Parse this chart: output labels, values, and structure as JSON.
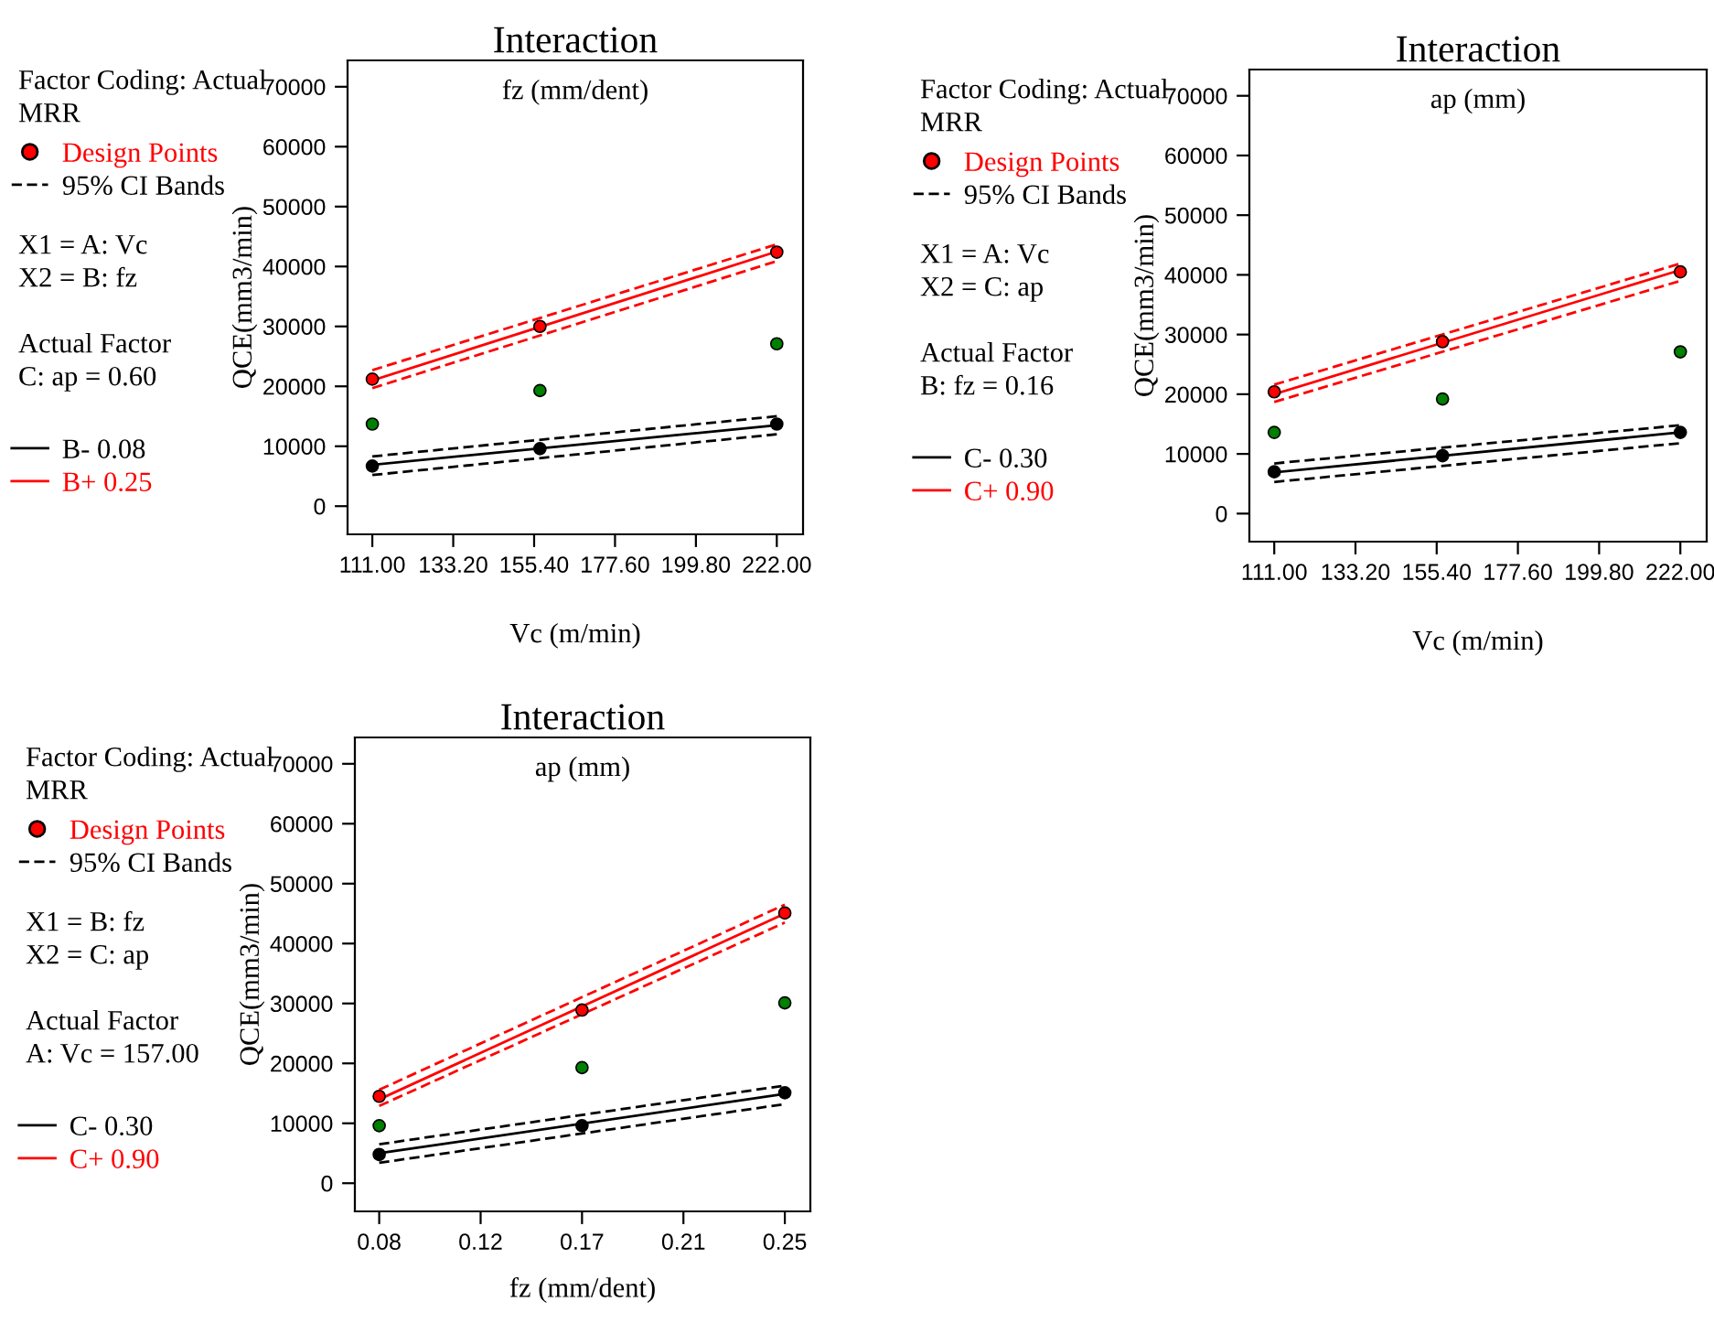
{
  "chart_data": [
    {
      "type": "line",
      "title": "Interaction",
      "subtitle": "fz (mm/dent)",
      "xlabel": "Vc (m/min)",
      "ylabel": "QCE(mm3/min)",
      "xlim": [
        104.2,
        229.2
      ],
      "ylim": [
        -4700,
        74400
      ],
      "xticks": [
        {
          "value": 111,
          "label": "111.00"
        },
        {
          "value": 133.2,
          "label": "133.20"
        },
        {
          "value": 155.4,
          "label": "155.40"
        },
        {
          "value": 177.6,
          "label": "177.60"
        },
        {
          "value": 199.8,
          "label": "199.80"
        },
        {
          "value": 222,
          "label": "222.00"
        }
      ],
      "yticks": [
        0,
        10000,
        20000,
        30000,
        40000,
        50000,
        60000,
        70000
      ],
      "grid": false,
      "legend": "left",
      "annotations": [
        "Factor Coding: Actual",
        "MRR",
        "X1 = A: Vc",
        "X2 = B: fz",
        "Actual Factor",
        "C: ap = 0.60"
      ],
      "series": [
        {
          "name": "B- 0.08",
          "color": "#000000",
          "line_style": "solid",
          "marker": "none",
          "x": [
            111,
            222
          ],
          "values": [
            6900,
            13500
          ]
        },
        {
          "name": "95% CI Bands",
          "color": "#000000",
          "line_style": "dashed",
          "marker": "none",
          "x": [
            111,
            222
          ],
          "values": [
            8300,
            15000
          ]
        },
        {
          "color": "#000000",
          "line_style": "dashed",
          "marker": "none",
          "x": [
            111,
            222
          ],
          "values": [
            5200,
            12000
          ]
        },
        {
          "name": "B+ 0.25",
          "color": "#ff0000",
          "line_style": "solid",
          "marker": "none",
          "x": [
            111,
            222
          ],
          "values": [
            21000,
            42500
          ]
        },
        {
          "color": "#ff0000",
          "line_style": "dashed",
          "marker": "none",
          "x": [
            111,
            222
          ],
          "values": [
            22700,
            43700
          ]
        },
        {
          "color": "#ff0000",
          "line_style": "dashed",
          "marker": "none",
          "x": [
            111,
            222
          ],
          "values": [
            19700,
            40900
          ]
        },
        {
          "type": "scatter",
          "name": "Design Points",
          "marker": "circle",
          "color": "#ff0000",
          "x": [
            111,
            157,
            222,
            111,
            157,
            222,
            111,
            157,
            222
          ],
          "values": [
            21200,
            30000,
            42400,
            6700,
            9600,
            13700,
            13700,
            19300,
            27100
          ],
          "colors": [
            "#ff0000",
            "#ff0000",
            "#ff0000",
            "#000000",
            "#000000",
            "#000000",
            "#008000",
            "#008000",
            "#008000"
          ]
        }
      ]
    },
    {
      "type": "line",
      "title": "Interaction",
      "subtitle": "ap (mm)",
      "xlabel": "Vc (m/min)",
      "ylabel": "QCE(mm3/min)",
      "xlim": [
        104.2,
        229.2
      ],
      "ylim": [
        -4700,
        74400
      ],
      "xticks": [
        {
          "value": 111,
          "label": "111.00"
        },
        {
          "value": 133.2,
          "label": "133.20"
        },
        {
          "value": 155.4,
          "label": "155.40"
        },
        {
          "value": 177.6,
          "label": "177.60"
        },
        {
          "value": 199.8,
          "label": "199.80"
        },
        {
          "value": 222,
          "label": "222.00"
        }
      ],
      "yticks": [
        0,
        10000,
        20000,
        30000,
        40000,
        50000,
        60000,
        70000
      ],
      "grid": false,
      "legend": "left",
      "annotations": [
        "Factor Coding: Actual",
        "MRR",
        "X1 = A: Vc",
        "X2 = C: ap",
        "Actual Factor",
        "B: fz = 0.16"
      ],
      "series": [
        {
          "name": "C- 0.30",
          "color": "#000000",
          "line_style": "solid",
          "marker": "none",
          "x": [
            111,
            222
          ],
          "values": [
            6900,
            13600
          ]
        },
        {
          "name": "95% CI Bands",
          "color": "#000000",
          "line_style": "dashed",
          "marker": "none",
          "x": [
            111,
            222
          ],
          "values": [
            8400,
            14800
          ]
        },
        {
          "color": "#000000",
          "line_style": "dashed",
          "marker": "none",
          "x": [
            111,
            222
          ],
          "values": [
            5300,
            11800
          ]
        },
        {
          "name": "C+ 0.90",
          "color": "#ff0000",
          "line_style": "solid",
          "marker": "none",
          "x": [
            111,
            222
          ],
          "values": [
            20000,
            40800
          ]
        },
        {
          "color": "#ff0000",
          "line_style": "dashed",
          "marker": "none",
          "x": [
            111,
            222
          ],
          "values": [
            21600,
            41900
          ]
        },
        {
          "color": "#ff0000",
          "line_style": "dashed",
          "marker": "none",
          "x": [
            111,
            222
          ],
          "values": [
            18700,
            39000
          ]
        },
        {
          "type": "scatter",
          "name": "Design Points",
          "marker": "circle",
          "color": "#ff0000",
          "x": [
            111,
            157,
            222,
            111,
            157,
            222,
            111,
            157,
            222
          ],
          "values": [
            20400,
            28800,
            40500,
            7000,
            9700,
            13600,
            13600,
            19200,
            27100
          ],
          "colors": [
            "#ff0000",
            "#ff0000",
            "#ff0000",
            "#000000",
            "#000000",
            "#000000",
            "#008000",
            "#008000",
            "#008000"
          ]
        }
      ]
    },
    {
      "type": "line",
      "title": "Interaction",
      "subtitle": "ap (mm)",
      "xlabel": "fz (mm/dent)",
      "ylabel": "QCE(mm3/min)",
      "xlim": [
        0.0698,
        0.2607
      ],
      "ylim": [
        -4700,
        74400
      ],
      "xticks": [
        {
          "value": 0.08,
          "label": "0.08"
        },
        {
          "value": 0.1225,
          "label": "0.12"
        },
        {
          "value": 0.165,
          "label": "0.17"
        },
        {
          "value": 0.2075,
          "label": "0.21"
        },
        {
          "value": 0.25,
          "label": "0.25"
        }
      ],
      "yticks": [
        0,
        10000,
        20000,
        30000,
        40000,
        50000,
        60000,
        70000
      ],
      "grid": false,
      "legend": "left",
      "annotations": [
        "Factor Coding: Actual",
        "MRR",
        "X1 = B: fz",
        "X2 = C: ap",
        "Actual Factor",
        "A: Vc = 157.00"
      ],
      "series": [
        {
          "name": "C- 0.30",
          "color": "#000000",
          "line_style": "solid",
          "marker": "none",
          "x": [
            0.08,
            0.25
          ],
          "values": [
            5000,
            14900
          ]
        },
        {
          "name": "95% CI Bands",
          "color": "#000000",
          "line_style": "dashed",
          "marker": "none",
          "x": [
            0.08,
            0.25
          ],
          "values": [
            6500,
            16300
          ]
        },
        {
          "color": "#000000",
          "line_style": "dashed",
          "marker": "none",
          "x": [
            0.08,
            0.25
          ],
          "values": [
            3400,
            13200
          ]
        },
        {
          "name": "C+ 0.90",
          "color": "#ff0000",
          "line_style": "solid",
          "marker": "none",
          "x": [
            0.08,
            0.25
          ],
          "values": [
            14000,
            45000
          ]
        },
        {
          "color": "#ff0000",
          "line_style": "dashed",
          "marker": "none",
          "x": [
            0.08,
            0.25
          ],
          "values": [
            15600,
            46500
          ]
        },
        {
          "color": "#ff0000",
          "line_style": "dashed",
          "marker": "none",
          "x": [
            0.08,
            0.25
          ],
          "values": [
            12900,
            43500
          ]
        },
        {
          "type": "scatter",
          "name": "Design Points",
          "marker": "circle",
          "color": "#ff0000",
          "x": [
            0.08,
            0.165,
            0.25,
            0.08,
            0.165,
            0.25,
            0.08,
            0.165,
            0.25
          ],
          "values": [
            14500,
            28900,
            45100,
            4800,
            9600,
            15100,
            9600,
            19300,
            30100
          ],
          "colors": [
            "#ff0000",
            "#ff0000",
            "#ff0000",
            "#000000",
            "#000000",
            "#000000",
            "#008000",
            "#008000",
            "#008000"
          ]
        }
      ]
    }
  ]
}
